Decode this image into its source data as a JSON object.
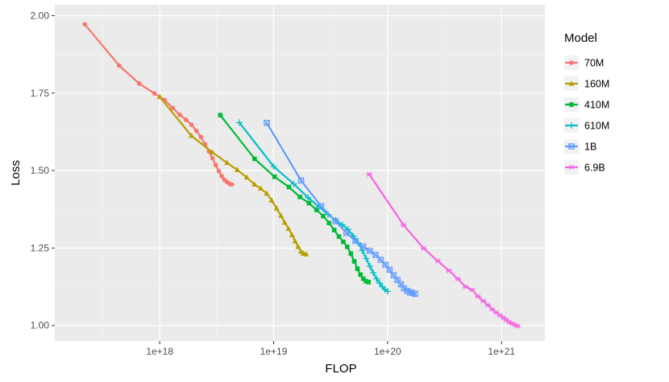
{
  "chart_data": {
    "type": "line",
    "xlabel": "FLOP",
    "ylabel": "Loss",
    "x_scale": "log10",
    "xlim": [
      1.2e+17,
      2.4e+21
    ],
    "ylim": [
      0.95,
      2.035
    ],
    "x_ticks": [
      1e+18,
      1e+19,
      1e+20,
      1e+21
    ],
    "x_tick_labels": [
      "1e+18",
      "1e+19",
      "1e+20",
      "1e+21"
    ],
    "y_ticks": [
      1.0,
      1.25,
      1.5,
      1.75,
      2.0
    ],
    "y_tick_labels": [
      "1.00",
      "1.25",
      "1.50",
      "1.75",
      "2.00"
    ],
    "grid": true,
    "legend": {
      "title": "Model",
      "position": "right"
    },
    "series": [
      {
        "name": "70M",
        "color": "#F8766D",
        "marker": "circle",
        "x": [
          2.2e+17,
          4.4e+17,
          6.6e+17,
          9e+17,
          1.1e+18,
          1.3e+18,
          1.5e+18,
          1.7e+18,
          1.9e+18,
          2.1e+18,
          2.3e+18,
          2.5e+18,
          2.7e+18,
          2.9e+18,
          3.1e+18,
          3.3e+18,
          3.5e+18,
          3.7e+18,
          3.9e+18,
          4.1e+18,
          4.3e+18
        ],
        "y": [
          1.972,
          1.839,
          1.781,
          1.749,
          1.728,
          1.702,
          1.68,
          1.664,
          1.648,
          1.628,
          1.608,
          1.585,
          1.562,
          1.54,
          1.518,
          1.498,
          1.482,
          1.47,
          1.463,
          1.457,
          1.455
        ]
      },
      {
        "name": "160M",
        "color": "#B79F00",
        "marker": "triangle",
        "x": [
          1e+18,
          1.9e+18,
          2.9e+18,
          3.9e+18,
          4.8e+18,
          5.8e+18,
          6.8e+18,
          7.7e+18,
          8.7e+18,
          9.6e+18,
          1.06e+19,
          1.16e+19,
          1.25e+19,
          1.35e+19,
          1.45e+19,
          1.54e+19,
          1.64e+19,
          1.74e+19,
          1.83e+19,
          1.93e+19
        ],
        "y": [
          1.738,
          1.612,
          1.559,
          1.525,
          1.502,
          1.478,
          1.455,
          1.442,
          1.426,
          1.404,
          1.378,
          1.354,
          1.332,
          1.312,
          1.292,
          1.272,
          1.254,
          1.238,
          1.232,
          1.23
        ]
      },
      {
        "name": "410M",
        "color": "#00BA38",
        "marker": "square",
        "x": [
          3.4e+18,
          6.8e+18,
          1.02e+19,
          1.36e+19,
          1.7e+19,
          2.04e+19,
          2.38e+19,
          2.72e+19,
          3.06e+19,
          3.4e+19,
          3.74e+19,
          4.08e+19,
          4.42e+19,
          4.76e+19,
          5.1e+19,
          5.44e+19,
          5.78e+19,
          6.12e+19,
          6.46e+19,
          6.8e+19
        ],
        "y": [
          1.679,
          1.538,
          1.48,
          1.447,
          1.415,
          1.395,
          1.373,
          1.353,
          1.331,
          1.308,
          1.287,
          1.27,
          1.254,
          1.232,
          1.207,
          1.183,
          1.164,
          1.151,
          1.143,
          1.14
        ]
      },
      {
        "name": "610M",
        "color": "#00BFC4",
        "marker": "cross",
        "x": [
          5e+18,
          1e+19,
          1.5e+19,
          2e+19,
          2.5e+19,
          3e+19,
          3.5e+19,
          4e+19,
          4.5e+19,
          5e+19,
          5.5e+19,
          6e+19,
          6.5e+19,
          7e+19,
          7.5e+19,
          8e+19,
          8.5e+19,
          9e+19,
          9.5e+19,
          1e+20
        ],
        "y": [
          1.655,
          1.513,
          1.457,
          1.413,
          1.383,
          1.358,
          1.339,
          1.325,
          1.31,
          1.289,
          1.267,
          1.242,
          1.216,
          1.191,
          1.17,
          1.151,
          1.137,
          1.125,
          1.116,
          1.11
        ]
      },
      {
        "name": "1B",
        "color": "#619CFF",
        "marker": "box-x",
        "x": [
          8.7e+18,
          1.74e+19,
          2.61e+19,
          3.48e+19,
          4.35e+19,
          5.22e+19,
          6.09e+19,
          6.96e+19,
          7.83e+19,
          8.7e+19,
          9.57e+19,
          1.04e+20,
          1.13e+20,
          1.22e+20,
          1.31e+20,
          1.39e+20,
          1.48e+20,
          1.57e+20,
          1.65e+20,
          1.74e+20
        ],
        "y": [
          1.654,
          1.468,
          1.385,
          1.337,
          1.299,
          1.273,
          1.255,
          1.241,
          1.228,
          1.212,
          1.196,
          1.18,
          1.162,
          1.147,
          1.133,
          1.12,
          1.112,
          1.107,
          1.105,
          1.102
        ]
      },
      {
        "name": "6.9B",
        "color": "#F564E3",
        "marker": "asterisk",
        "x": [
          6.9e+19,
          1.38e+20,
          2.07e+20,
          2.76e+20,
          3.45e+20,
          4.14e+20,
          4.83e+20,
          5.52e+20,
          6.21e+20,
          6.9e+20,
          7.59e+20,
          8.28e+20,
          8.97e+20,
          9.66e+20,
          1.04e+21,
          1.1e+21,
          1.17e+21,
          1.24e+21,
          1.31e+21,
          1.38e+21
        ],
        "y": [
          1.488,
          1.324,
          1.249,
          1.208,
          1.177,
          1.15,
          1.125,
          1.115,
          1.094,
          1.079,
          1.066,
          1.052,
          1.042,
          1.033,
          1.025,
          1.018,
          1.011,
          1.006,
          1.002,
          0.998
        ]
      }
    ]
  }
}
